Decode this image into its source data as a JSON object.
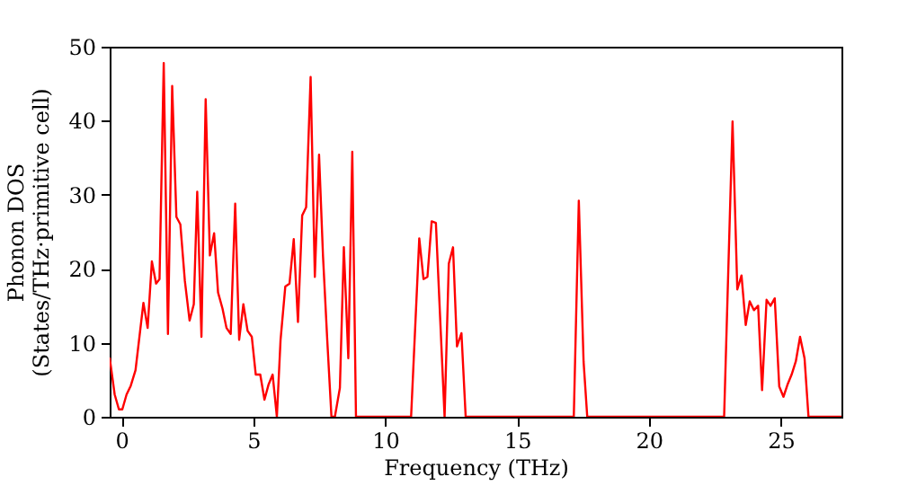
{
  "chart_data": {
    "type": "line",
    "xlabel": "Frequency (THz)",
    "ylabel": "Phonon DOS\n(States/THz·primitive cell)",
    "xlim": [
      -0.45,
      27.3
    ],
    "ylim": [
      0,
      50
    ],
    "xticks": [
      0,
      5,
      10,
      15,
      20,
      25
    ],
    "yticks": [
      0,
      10,
      20,
      30,
      40,
      50
    ],
    "grid": false,
    "series": [
      {
        "color": "#ff0000",
        "x": [
          -0.45,
          -0.26,
          -0.1,
          0.03,
          0.19,
          0.35,
          0.53,
          0.83,
          0.99,
          1.15,
          1.31,
          1.44,
          1.6,
          1.76,
          1.92,
          2.08,
          2.23,
          2.4,
          2.58,
          2.74,
          2.87,
          3.03,
          3.19,
          3.35,
          3.51,
          3.66,
          3.83,
          3.98,
          4.14,
          4.31,
          4.46,
          4.62,
          4.78,
          4.94,
          5.09,
          5.26,
          5.42,
          5.57,
          5.73,
          5.89,
          6.03,
          6.21,
          6.37,
          6.53,
          6.69,
          6.85,
          7.0,
          7.17,
          7.33,
          7.49,
          7.64,
          7.8,
          7.96,
          8.09,
          8.28,
          8.43,
          8.6,
          8.75,
          8.89,
          10.98,
          11.29,
          11.45,
          11.6,
          11.76,
          11.92,
          12.25,
          12.41,
          12.57,
          12.72,
          12.89,
          13.05,
          17.15,
          17.34,
          17.52,
          17.66,
          22.85,
          23.17,
          23.35,
          23.51,
          23.67,
          23.82,
          23.98,
          24.14,
          24.29,
          24.46,
          24.61,
          24.77,
          24.94,
          25.1,
          25.25,
          25.41,
          25.57,
          25.73,
          25.9,
          26.05,
          27.3
        ],
        "values": [
          8,
          3,
          1,
          1,
          3,
          4.2,
          6.3,
          15.4,
          12,
          21,
          18,
          18.6,
          47.8,
          11.2,
          44.7,
          27,
          26,
          18.4,
          13,
          15.2,
          30.4,
          10.8,
          42.9,
          21.8,
          24.8,
          16.8,
          14.6,
          12,
          11.2,
          28.8,
          10.4,
          15.2,
          11.6,
          10.8,
          5.7,
          5.7,
          2.3,
          4.3,
          5.7,
          0,
          10.4,
          17.6,
          18,
          24,
          12.8,
          27.2,
          28.3,
          45.9,
          18.9,
          35.4,
          21.7,
          10.4,
          0,
          0,
          3.9,
          22.9,
          7.9,
          35.8,
          0,
          0,
          24.1,
          18.6,
          18.9,
          26.4,
          26.2,
          0,
          20.7,
          22.9,
          9.5,
          11.3,
          0,
          0,
          29.2,
          7.5,
          0,
          0,
          39.9,
          17.2,
          19.1,
          12.4,
          15.6,
          14.4,
          15,
          3.6,
          15.8,
          15,
          16,
          4.1,
          2.7,
          4.3,
          5.7,
          7.5,
          10.8,
          7.9,
          0,
          0
        ]
      }
    ]
  }
}
